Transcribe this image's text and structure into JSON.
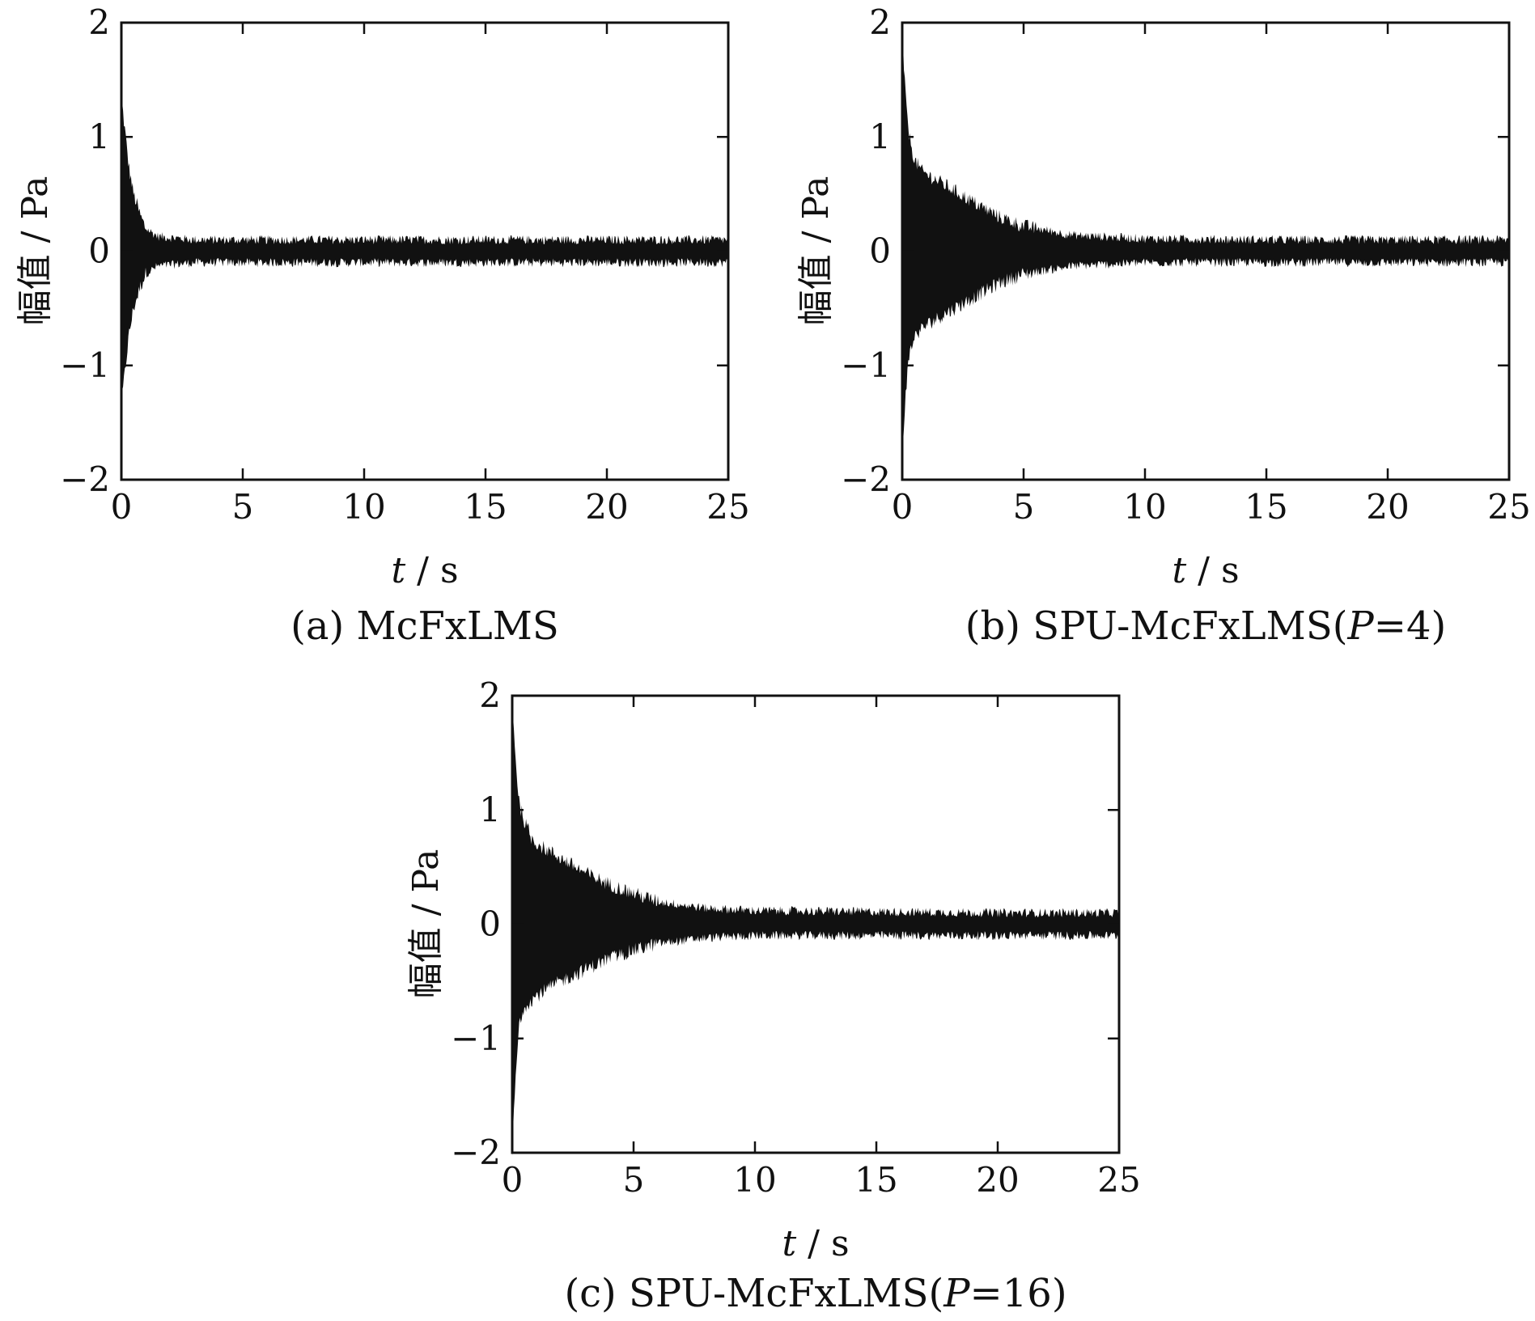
{
  "chart_data": [
    {
      "type": "area",
      "id": "a",
      "caption": "(a) McFxLMS",
      "xlabel_italic": "t",
      "xlabel_unit": " / s",
      "ylabel": "幅值 / Pa",
      "xlim": [
        0,
        25
      ],
      "ylim": [
        -2,
        2
      ],
      "xticks": [
        "0",
        "5",
        "10",
        "15",
        "20",
        "25"
      ],
      "yticks": [
        "2",
        "1",
        "0",
        "−1",
        "−2"
      ],
      "envelope": {
        "t": [
          0,
          0.1,
          0.2,
          0.3,
          0.5,
          0.8,
          1.0,
          1.5,
          2,
          3,
          5,
          10,
          15,
          20,
          25
        ],
        "upper": [
          1.35,
          1.15,
          0.95,
          0.75,
          0.5,
          0.3,
          0.2,
          0.13,
          0.12,
          0.1,
          0.1,
          0.1,
          0.1,
          0.1,
          0.1
        ],
        "lower": [
          -1.35,
          -1.15,
          -0.95,
          -0.75,
          -0.5,
          -0.3,
          -0.2,
          -0.13,
          -0.12,
          -0.1,
          -0.1,
          -0.1,
          -0.1,
          -0.1,
          -0.1
        ]
      }
    },
    {
      "type": "area",
      "id": "b",
      "caption_prefix": "(b) SPU-McFxLMS(",
      "caption_italic": "P",
      "caption_suffix": "=4)",
      "xlabel_italic": "t",
      "xlabel_unit": " / s",
      "ylabel": "幅值 / Pa",
      "xlim": [
        0,
        25
      ],
      "ylim": [
        -2,
        2
      ],
      "xticks": [
        "0",
        "5",
        "10",
        "15",
        "20",
        "25"
      ],
      "yticks": [
        "2",
        "1",
        "0",
        "−1",
        "−2"
      ],
      "envelope": {
        "t": [
          0,
          0.15,
          0.3,
          0.5,
          0.8,
          1.2,
          2,
          3,
          4,
          5,
          7,
          10,
          15,
          20,
          25
        ],
        "upper": [
          1.9,
          1.3,
          1.0,
          0.8,
          0.7,
          0.65,
          0.55,
          0.42,
          0.3,
          0.22,
          0.14,
          0.11,
          0.1,
          0.1,
          0.1
        ],
        "lower": [
          -1.8,
          -1.2,
          -0.9,
          -0.75,
          -0.68,
          -0.62,
          -0.52,
          -0.4,
          -0.28,
          -0.2,
          -0.13,
          -0.1,
          -0.1,
          -0.1,
          -0.1
        ]
      }
    },
    {
      "type": "area",
      "id": "c",
      "caption_prefix": "(c) SPU-McFxLMS(",
      "caption_italic": "P",
      "caption_suffix": "=16)",
      "xlabel_italic": "t",
      "xlabel_unit": " / s",
      "ylabel": "幅值 / Pa",
      "xlim": [
        0,
        25
      ],
      "ylim": [
        -2,
        2
      ],
      "xticks": [
        "0",
        "5",
        "10",
        "15",
        "20",
        "25"
      ],
      "yticks": [
        "2",
        "1",
        "0",
        "−1",
        "−2"
      ],
      "envelope": {
        "t": [
          0,
          0.15,
          0.3,
          0.5,
          0.8,
          1.2,
          2,
          3,
          4,
          5,
          6,
          8,
          10,
          15,
          20,
          25
        ],
        "upper": [
          2.0,
          1.4,
          1.05,
          0.9,
          0.75,
          0.68,
          0.58,
          0.45,
          0.35,
          0.27,
          0.2,
          0.14,
          0.12,
          0.11,
          0.1,
          0.1
        ],
        "lower": [
          -2.0,
          -1.3,
          -0.85,
          -0.72,
          -0.66,
          -0.6,
          -0.5,
          -0.4,
          -0.3,
          -0.23,
          -0.17,
          -0.12,
          -0.1,
          -0.1,
          -0.1,
          -0.1
        ]
      }
    }
  ]
}
